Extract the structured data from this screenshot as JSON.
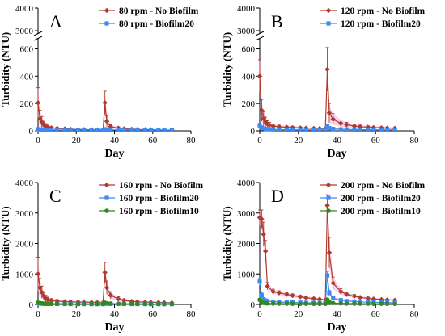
{
  "colors": {
    "no_biofilm": "#b03a2e",
    "biofilm20": "#3d8bf2",
    "biofilm10": "#2f8a1f",
    "band": "#f4b3dd"
  },
  "chart_data": [
    {
      "type": "line",
      "panel_label": "A",
      "xlabel": "Day",
      "ylabel": "Turbidity (NTU)",
      "xlim": [
        0,
        80
      ],
      "xticks": [
        "0",
        "20",
        "40",
        "60",
        "80"
      ],
      "y_axis_break": true,
      "ylim_lower": [
        0,
        650
      ],
      "ylim_upper": [
        3000,
        4000
      ],
      "yticks": [
        "0",
        "200",
        "400",
        "600",
        "3000",
        "4000"
      ],
      "legend_position": "top-right",
      "series": [
        {
          "name": "80 rpm - No Biofilm",
          "color": "#b03a2e",
          "marker": "diamond",
          "x": [
            0,
            1,
            2,
            3,
            4,
            5,
            7,
            10,
            14,
            17,
            21,
            24,
            28,
            31,
            34,
            35,
            36,
            38,
            42,
            45,
            49,
            52,
            56,
            59,
            63,
            66,
            70
          ],
          "y": [
            205,
            90,
            65,
            45,
            35,
            28,
            22,
            18,
            14,
            12,
            10,
            9,
            8,
            7,
            6,
            205,
            70,
            30,
            20,
            15,
            12,
            10,
            9,
            8,
            7,
            6,
            6
          ],
          "err": [
            110,
            60,
            40,
            25,
            18,
            14,
            10,
            8,
            6,
            5,
            4,
            4,
            3,
            3,
            3,
            85,
            40,
            15,
            10,
            7,
            5,
            4,
            4,
            3,
            3,
            3,
            3
          ]
        },
        {
          "name": "80 rpm - Biofilm20",
          "color": "#3d8bf2",
          "marker": "square",
          "x": [
            0,
            1,
            2,
            3,
            4,
            5,
            7,
            10,
            14,
            17,
            21,
            24,
            28,
            31,
            34,
            35,
            36,
            38,
            42,
            45,
            49,
            52,
            56,
            59,
            63,
            66,
            70
          ],
          "y": [
            12,
            10,
            9,
            8,
            7,
            7,
            6,
            6,
            5,
            5,
            5,
            5,
            5,
            5,
            5,
            12,
            8,
            7,
            6,
            6,
            5,
            5,
            5,
            5,
            5,
            5,
            5
          ],
          "err": [
            6,
            4,
            3,
            3,
            3,
            2,
            2,
            2,
            2,
            2,
            2,
            2,
            2,
            2,
            2,
            5,
            3,
            2,
            2,
            2,
            2,
            2,
            2,
            2,
            2,
            2,
            2
          ]
        }
      ]
    },
    {
      "type": "line",
      "panel_label": "B",
      "xlabel": "Day",
      "ylabel": "Turbidity (NTU)",
      "xlim": [
        0,
        80
      ],
      "xticks": [
        "0",
        "20",
        "40",
        "60",
        "80"
      ],
      "y_axis_break": true,
      "ylim_lower": [
        0,
        650
      ],
      "ylim_upper": [
        3000,
        4000
      ],
      "yticks": [
        "0",
        "200",
        "400",
        "600",
        "3000",
        "4000"
      ],
      "legend_position": "top-right",
      "series": [
        {
          "name": "120 rpm - No Biofilm",
          "color": "#b03a2e",
          "marker": "diamond",
          "x": [
            0,
            1,
            2,
            3,
            4,
            5,
            7,
            10,
            14,
            17,
            21,
            24,
            28,
            31,
            34,
            35,
            36,
            38,
            42,
            45,
            49,
            52,
            56,
            59,
            63,
            66,
            70
          ],
          "y": [
            400,
            150,
            90,
            65,
            50,
            42,
            35,
            30,
            26,
            24,
            22,
            20,
            18,
            17,
            16,
            450,
            130,
            85,
            55,
            45,
            35,
            30,
            27,
            24,
            22,
            20,
            19
          ],
          "err": [
            120,
            80,
            50,
            35,
            25,
            20,
            15,
            12,
            10,
            9,
            8,
            7,
            6,
            6,
            5,
            160,
            70,
            40,
            25,
            18,
            14,
            12,
            10,
            9,
            8,
            7,
            7
          ]
        },
        {
          "name": "120 rpm - Biofilm20",
          "color": "#3d8bf2",
          "marker": "square",
          "x": [
            0,
            1,
            2,
            3,
            4,
            5,
            7,
            10,
            14,
            17,
            21,
            24,
            28,
            31,
            34,
            35,
            36,
            38,
            42,
            45,
            49,
            52,
            56,
            59,
            63,
            66,
            70
          ],
          "y": [
            40,
            25,
            18,
            14,
            12,
            11,
            10,
            9,
            8,
            8,
            7,
            7,
            7,
            7,
            7,
            35,
            20,
            14,
            11,
            10,
            9,
            8,
            8,
            7,
            7,
            7,
            7
          ],
          "err": [
            15,
            10,
            6,
            5,
            4,
            4,
            3,
            3,
            3,
            3,
            3,
            3,
            3,
            3,
            3,
            15,
            8,
            5,
            4,
            4,
            3,
            3,
            3,
            3,
            3,
            3,
            3
          ]
        }
      ]
    },
    {
      "type": "line",
      "panel_label": "C",
      "xlabel": "Day",
      "ylabel": "Turbidity (NTU)",
      "xlim": [
        0,
        80
      ],
      "ylim": [
        0,
        4000
      ],
      "xticks": [
        "0",
        "20",
        "40",
        "60",
        "80"
      ],
      "yticks": [
        "0",
        "1000",
        "2000",
        "3000",
        "4000"
      ],
      "legend_position": "top-right",
      "series": [
        {
          "name": "160 rpm - No Biofilm",
          "color": "#b03a2e",
          "marker": "diamond",
          "x": [
            0,
            1,
            2,
            3,
            4,
            5,
            7,
            10,
            14,
            17,
            21,
            24,
            28,
            31,
            34,
            35,
            36,
            38,
            42,
            45,
            49,
            52,
            56,
            59,
            63,
            66,
            70
          ],
          "y": [
            1000,
            550,
            400,
            280,
            200,
            160,
            130,
            110,
            95,
            85,
            80,
            75,
            70,
            65,
            60,
            1050,
            550,
            300,
            180,
            130,
            100,
            85,
            75,
            70,
            65,
            60,
            55
          ],
          "err": [
            550,
            300,
            200,
            140,
            100,
            80,
            60,
            50,
            40,
            35,
            30,
            28,
            25,
            22,
            20,
            330,
            220,
            120,
            70,
            50,
            40,
            32,
            28,
            25,
            22,
            20,
            18
          ]
        },
        {
          "name": "160 rpm - Biofilm20",
          "color": "#3d8bf2",
          "marker": "square",
          "x": [
            0,
            1,
            2,
            3,
            4,
            5,
            7,
            10,
            14,
            17,
            21,
            24,
            28,
            31,
            34,
            35,
            36,
            38,
            42,
            45,
            49,
            52,
            56,
            59,
            63,
            66,
            70
          ],
          "y": [
            40,
            30,
            25,
            22,
            20,
            18,
            16,
            15,
            14,
            13,
            12,
            12,
            11,
            11,
            11,
            40,
            25,
            20,
            16,
            14,
            13,
            12,
            11,
            11,
            10,
            10,
            10
          ],
          "err": [
            20,
            15,
            10,
            8,
            7,
            6,
            5,
            5,
            4,
            4,
            4,
            4,
            4,
            4,
            4,
            20,
            10,
            7,
            6,
            5,
            4,
            4,
            4,
            4,
            4,
            4,
            4
          ]
        },
        {
          "name": "160 rpm - Biofilm10",
          "color": "#2f8a1f",
          "marker": "circle",
          "x": [
            0,
            1,
            2,
            3,
            4,
            5,
            7,
            10,
            14,
            17,
            21,
            24,
            28,
            31,
            34,
            35,
            36,
            38,
            42,
            45,
            49,
            52,
            56,
            59,
            63,
            66,
            70
          ],
          "y": [
            60,
            45,
            35,
            30,
            26,
            24,
            22,
            20,
            19,
            18,
            17,
            16,
            16,
            15,
            15,
            55,
            35,
            28,
            22,
            20,
            18,
            17,
            16,
            15,
            15,
            14,
            14
          ],
          "err": [
            25,
            18,
            12,
            10,
            8,
            7,
            6,
            6,
            5,
            5,
            5,
            5,
            5,
            5,
            5,
            22,
            12,
            9,
            7,
            6,
            5,
            5,
            5,
            5,
            5,
            5,
            5
          ]
        }
      ]
    },
    {
      "type": "line",
      "panel_label": "D",
      "xlabel": "Day",
      "ylabel": "Turbidity (NTU)",
      "xlim": [
        0,
        80
      ],
      "ylim": [
        0,
        4000
      ],
      "xticks": [
        "0",
        "20",
        "40",
        "60",
        "80"
      ],
      "yticks": [
        "0",
        "1000",
        "2000",
        "3000",
        "4000"
      ],
      "legend_position": "top-right",
      "series": [
        {
          "name": "200 rpm - No Biofilm",
          "color": "#b03a2e",
          "marker": "diamond",
          "x": [
            0,
            1,
            2,
            3,
            4,
            7,
            10,
            14,
            17,
            21,
            24,
            28,
            31,
            34,
            35,
            36,
            38,
            42,
            45,
            49,
            52,
            56,
            59,
            63,
            66,
            70
          ],
          "y": [
            2850,
            2800,
            2300,
            1750,
            600,
            420,
            380,
            330,
            290,
            250,
            220,
            190,
            170,
            150,
            3250,
            1700,
            700,
            420,
            330,
            270,
            230,
            200,
            180,
            160,
            150,
            140
          ],
          "err": [
            250,
            300,
            400,
            350,
            120,
            80,
            70,
            60,
            55,
            50,
            45,
            40,
            35,
            30,
            350,
            500,
            200,
            100,
            70,
            55,
            45,
            40,
            35,
            30,
            30,
            28
          ]
        },
        {
          "name": "200 rpm - Biofilm20",
          "color": "#3d8bf2",
          "marker": "square",
          "x": [
            0,
            1,
            2,
            3,
            4,
            7,
            10,
            14,
            17,
            21,
            24,
            28,
            31,
            34,
            35,
            36,
            38,
            42,
            45,
            49,
            52,
            56,
            59,
            63,
            66,
            70
          ],
          "y": [
            750,
            300,
            170,
            130,
            110,
            90,
            80,
            70,
            65,
            60,
            55,
            50,
            48,
            45,
            950,
            380,
            200,
            140,
            110,
            95,
            85,
            75,
            70,
            65,
            60,
            55
          ],
          "err": [
            100,
            80,
            40,
            30,
            25,
            20,
            18,
            15,
            14,
            12,
            11,
            10,
            10,
            9,
            120,
            90,
            45,
            30,
            25,
            20,
            18,
            16,
            14,
            13,
            12,
            11
          ]
        },
        {
          "name": "200 rpm - Biofilm10",
          "color": "#2f8a1f",
          "marker": "circle",
          "x": [
            0,
            1,
            2,
            3,
            4,
            7,
            10,
            14,
            17,
            21,
            24,
            28,
            31,
            34,
            35,
            36,
            38,
            42,
            45,
            49,
            52,
            56,
            59,
            63,
            66,
            70
          ],
          "y": [
            150,
            80,
            50,
            40,
            35,
            30,
            27,
            25,
            23,
            22,
            21,
            20,
            19,
            18,
            160,
            80,
            45,
            35,
            30,
            27,
            25,
            23,
            22,
            21,
            20,
            19
          ],
          "err": [
            50,
            30,
            15,
            12,
            10,
            8,
            7,
            6,
            6,
            6,
            5,
            5,
            5,
            5,
            50,
            30,
            12,
            9,
            8,
            7,
            6,
            6,
            6,
            5,
            5,
            5
          ]
        }
      ]
    }
  ]
}
